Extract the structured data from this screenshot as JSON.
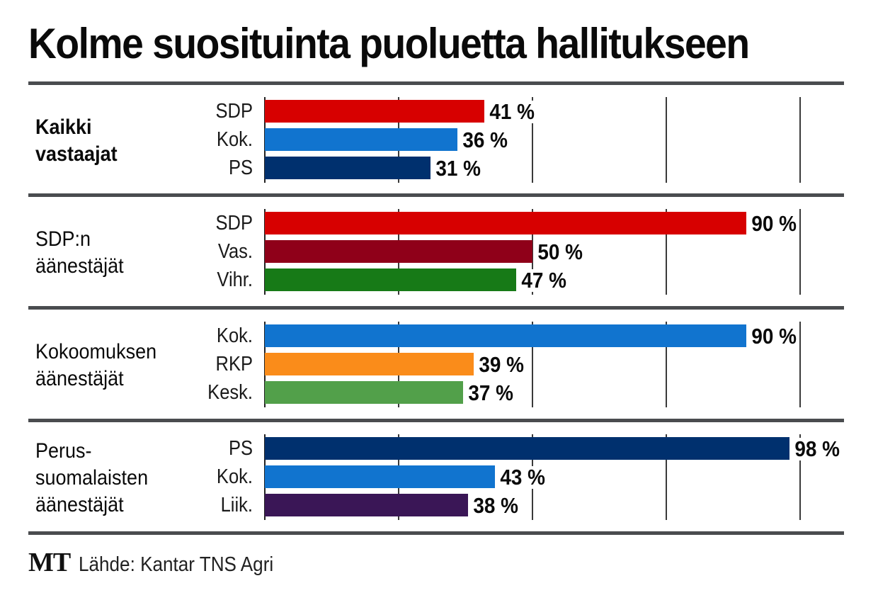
{
  "chart_data": {
    "type": "bar",
    "orientation": "horizontal",
    "title": "Kolme suosituinta puoluetta hallitukseen",
    "xlabel": "",
    "ylabel": "",
    "xlim": [
      0,
      100
    ],
    "grid": true,
    "gridlines_at": [
      25,
      50,
      75,
      100
    ],
    "value_suffix": " %",
    "groups": [
      {
        "label": "Kaikki\nvastaajat",
        "bold": true,
        "bars": [
          {
            "category": "SDP",
            "value": 41,
            "label": "41 %",
            "color": "#d70000"
          },
          {
            "category": "Kok.",
            "value": 36,
            "label": "36 %",
            "color": "#1174cf"
          },
          {
            "category": "PS",
            "value": 31,
            "label": "31 %",
            "color": "#00306e"
          }
        ]
      },
      {
        "label": "SDP:n\näänestäjät",
        "bold": false,
        "bars": [
          {
            "category": "SDP",
            "value": 90,
            "label": "90 %",
            "color": "#d70000"
          },
          {
            "category": "Vas.",
            "value": 50,
            "label": "50 %",
            "color": "#8f0019"
          },
          {
            "category": "Vihr.",
            "value": 47,
            "label": "47 %",
            "color": "#177a17"
          }
        ]
      },
      {
        "label": "Kokoomuksen\näänestäjät",
        "bold": false,
        "bars": [
          {
            "category": "Kok.",
            "value": 90,
            "label": "90 %",
            "color": "#1174cf"
          },
          {
            "category": "RKP",
            "value": 39,
            "label": "39 %",
            "color": "#fa8c1a"
          },
          {
            "category": "Kesk.",
            "value": 37,
            "label": "37 %",
            "color": "#52a04a"
          }
        ]
      },
      {
        "label": "Perus-\nsuomalaisten\näänestäjät",
        "bold": false,
        "bars": [
          {
            "category": "PS",
            "value": 98,
            "label": "98 %",
            "color": "#00306e"
          },
          {
            "category": "Kok.",
            "value": 43,
            "label": "43 %",
            "color": "#1174cf"
          },
          {
            "category": "Liik.",
            "value": 38,
            "label": "38 %",
            "color": "#3a1656"
          }
        ]
      }
    ]
  },
  "footer": {
    "brand": "MT",
    "source": "Lähde: Kantar TNS Agri"
  }
}
